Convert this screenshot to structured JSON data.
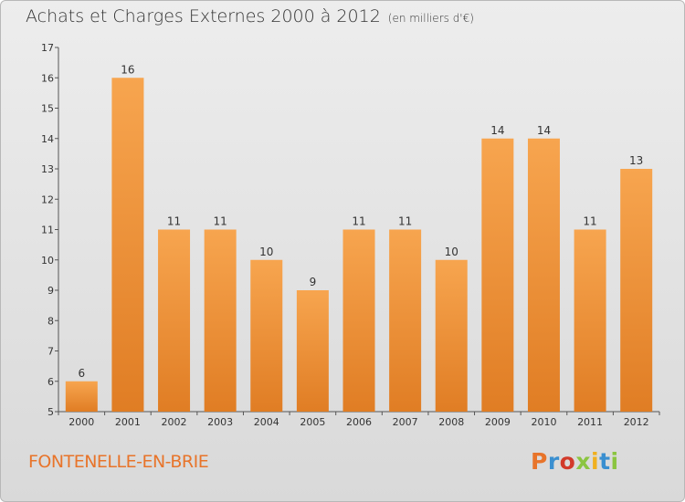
{
  "header": {
    "title": "Achats et Charges Externes 2000 à 2012",
    "subtitle": "(en milliers d'€)"
  },
  "footer": {
    "place": "FONTENELLE-EN-BRIE",
    "logo": "Proxiti",
    "logo_colors": [
      "#e8742a",
      "#3a8fd0",
      "#d23a2a",
      "#8bc540",
      "#f0b020",
      "#3a8fd0",
      "#8bc540"
    ]
  },
  "chart_data": {
    "type": "bar",
    "title": "Achats et Charges Externes 2000 à 2012",
    "subtitle": "(en milliers d'€)",
    "xlabel": "",
    "ylabel": "",
    "categories": [
      "2000",
      "2001",
      "2002",
      "2003",
      "2004",
      "2005",
      "2006",
      "2007",
      "2008",
      "2009",
      "2010",
      "2011",
      "2012"
    ],
    "values": [
      6,
      16,
      11,
      11,
      10,
      9,
      11,
      11,
      10,
      14,
      14,
      11,
      13
    ],
    "ylim": [
      5,
      17
    ],
    "yticks": [
      5,
      6,
      7,
      8,
      9,
      10,
      11,
      12,
      13,
      14,
      15,
      16,
      17
    ],
    "grid": false,
    "colors": {
      "bar_light": "#f7a54f",
      "bar_dark": "#e07d24"
    }
  }
}
